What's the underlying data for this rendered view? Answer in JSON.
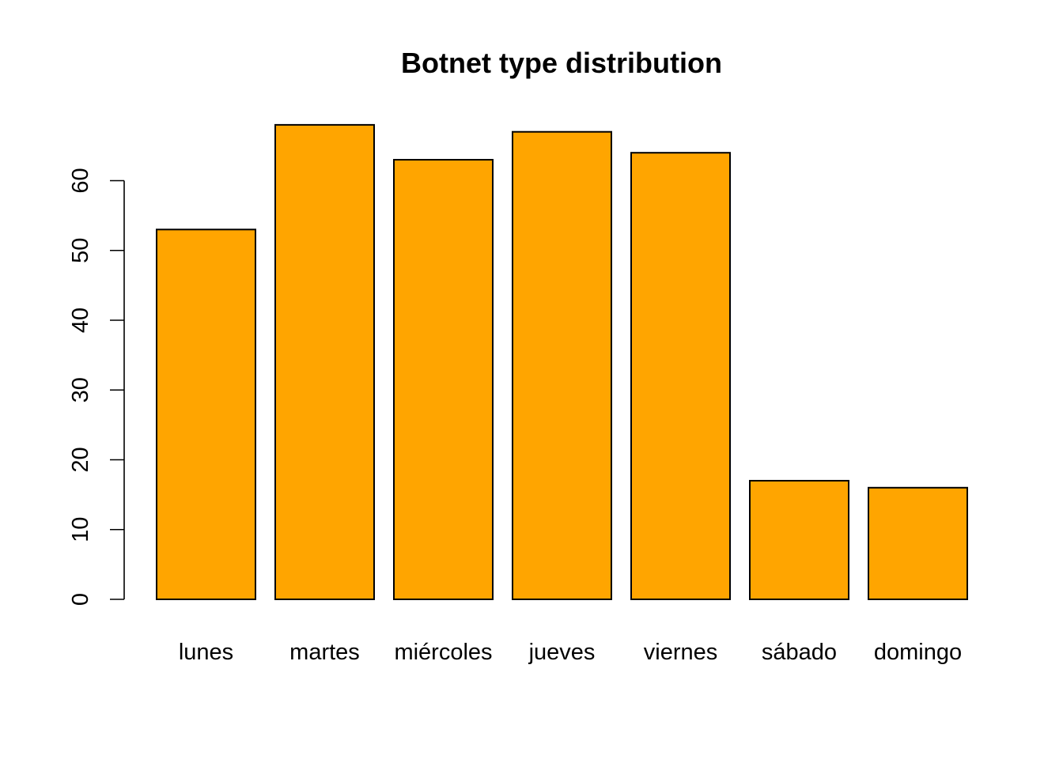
{
  "chart_data": {
    "type": "bar",
    "title": "Botnet type distribution",
    "xlabel": "",
    "ylabel": "",
    "categories": [
      "lunes",
      "martes",
      "miércoles",
      "jueves",
      "viernes",
      "sábado",
      "domingo"
    ],
    "values": [
      53,
      68,
      63,
      67,
      64,
      17,
      16
    ],
    "ylim": [
      0,
      68
    ],
    "yticks": [
      0,
      10,
      20,
      30,
      40,
      50,
      60
    ],
    "bar_color": "#FFA500",
    "bar_border_color": "#000000",
    "grid": false,
    "legend": "none"
  }
}
